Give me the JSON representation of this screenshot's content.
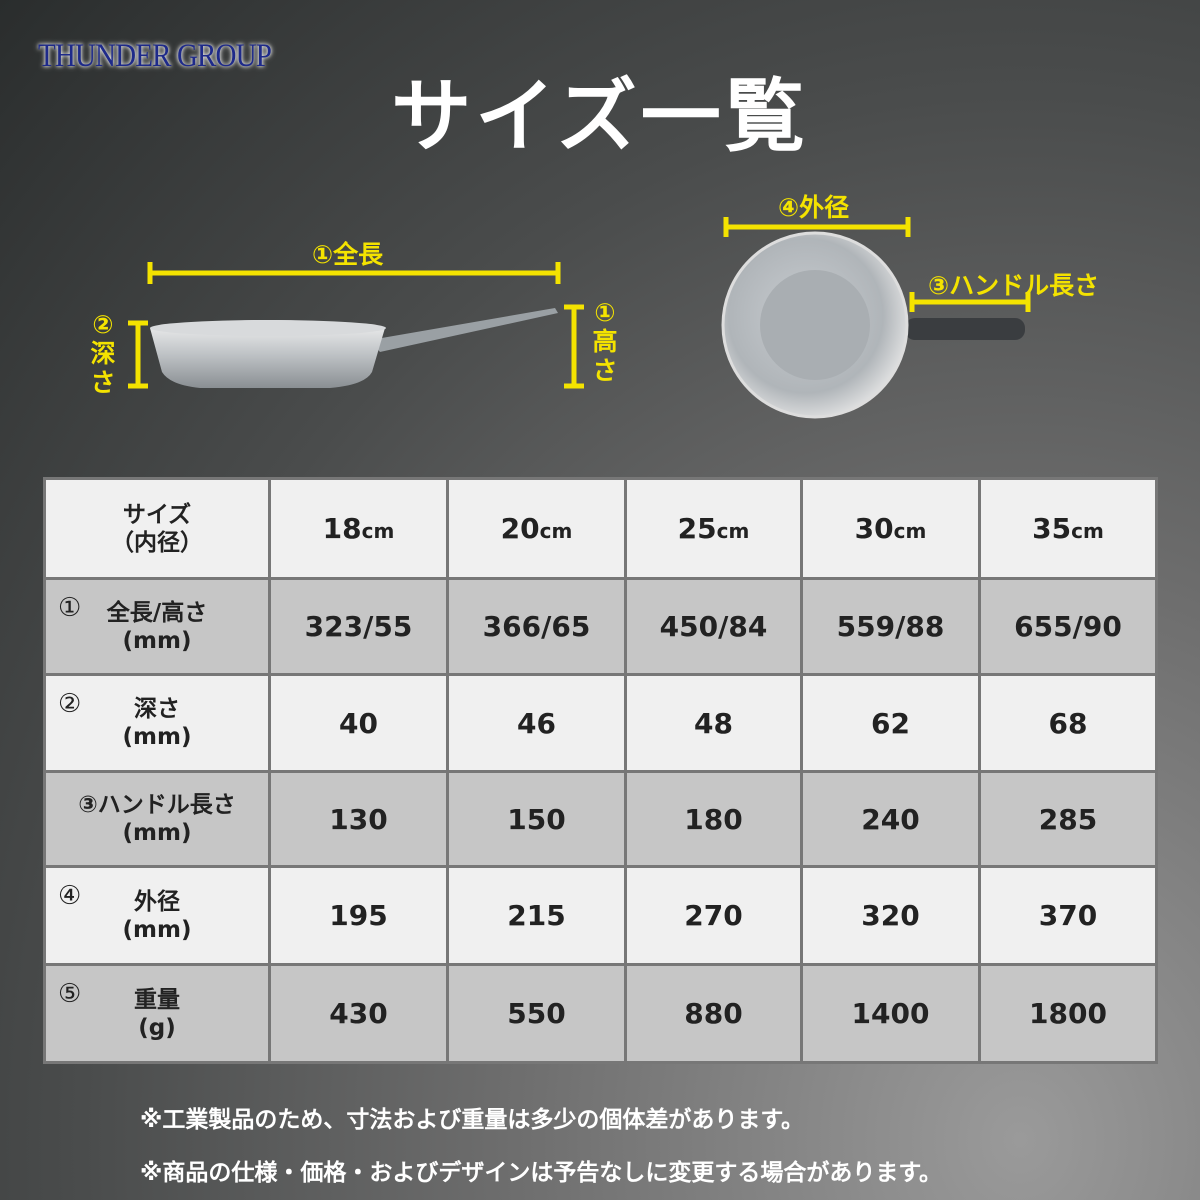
{
  "brand": "THUNDER GROUP",
  "title": "サイズ一覧",
  "accent_color": "#f4e300",
  "diagram": {
    "side_length": "①全長",
    "side_depth": "②深さ",
    "side_height": "①高さ",
    "top_diameter": "④外径",
    "top_handle": "③ハンドル長さ"
  },
  "table": {
    "header": {
      "label": "サイズ",
      "sub": "（内径）",
      "sizes": [
        {
          "n": "18",
          "u": "cm"
        },
        {
          "n": "20",
          "u": "cm"
        },
        {
          "n": "25",
          "u": "cm"
        },
        {
          "n": "30",
          "u": "cm"
        },
        {
          "n": "35",
          "u": "cm"
        }
      ]
    },
    "rows": [
      {
        "num": "①",
        "label": "全長/高さ",
        "unit": "(mm)",
        "values": [
          "323/55",
          "366/65",
          "450/84",
          "559/88",
          "655/90"
        ]
      },
      {
        "num": "②",
        "label": "深さ",
        "unit": "(mm)",
        "values": [
          "40",
          "46",
          "48",
          "62",
          "68"
        ]
      },
      {
        "num": "",
        "label": "③ハンドル長さ",
        "unit": "(mm)",
        "values": [
          "130",
          "150",
          "180",
          "240",
          "285"
        ]
      },
      {
        "num": "④",
        "label": "外径",
        "unit": "(mm)",
        "values": [
          "195",
          "215",
          "270",
          "320",
          "370"
        ]
      },
      {
        "num": "⑤",
        "label": "重量",
        "unit": "(g)",
        "values": [
          "430",
          "550",
          "880",
          "1400",
          "1800"
        ]
      }
    ]
  },
  "notes": [
    "※工業製品のため、寸法および重量は多少の個体差があります。",
    "※商品の仕様・価格・およびデザインは予告なしに変更する場合があります。"
  ]
}
